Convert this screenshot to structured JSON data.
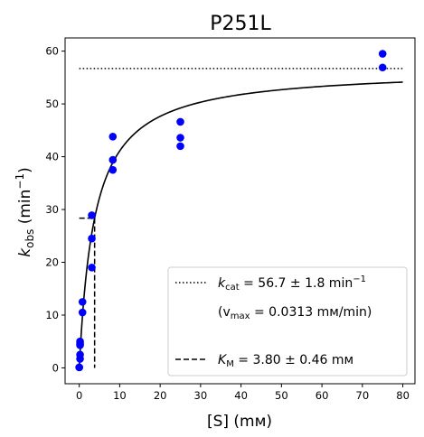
{
  "chart_data": {
    "type": "scatter",
    "title": "P251L",
    "xlabel": "[S] (mм)",
    "ylabel": {
      "main": "k",
      "sub": "obs",
      "unit_open": " (min",
      "sup": "−1",
      "unit_close": ")"
    },
    "xlim": [
      -3.5,
      83
    ],
    "ylim": [
      -3,
      62.5
    ],
    "xticks": [
      0,
      10,
      20,
      30,
      40,
      50,
      60,
      70,
      80
    ],
    "yticks": [
      0,
      10,
      20,
      30,
      40,
      50,
      60
    ],
    "grid": false,
    "legend_position": "bottom-right",
    "colors": {
      "points": "#0000ff",
      "fit": "#000000",
      "axes": "#000000"
    },
    "series": [
      {
        "kind": "scatter",
        "x": [
          0,
          0,
          0.2,
          0.2,
          0.2,
          0.2,
          0.2,
          0.8,
          0.8,
          3.1,
          3.1,
          3.1,
          8.3,
          8.3,
          8.3,
          25,
          25,
          25,
          75,
          75
        ],
        "y": [
          0.1,
          0.1,
          1.7,
          2.5,
          4.3,
          4.6,
          5.0,
          10.5,
          12.5,
          19.0,
          24.5,
          28.9,
          37.5,
          39.4,
          43.8,
          42.0,
          43.6,
          46.6,
          56.9,
          59.5
        ]
      },
      {
        "kind": "fit",
        "model": "michaelis-menten",
        "kcat": 56.7,
        "km": 3.8,
        "x_range": [
          0,
          80
        ]
      },
      {
        "kind": "kcat-line",
        "y": 56.7,
        "x_range": [
          0,
          80
        ]
      },
      {
        "kind": "km-line",
        "x": 3.8,
        "y": 28.35,
        "x_start": 0
      }
    ],
    "legend": [
      {
        "style": "dotted",
        "label": {
          "pre": "k",
          "sub": "cat",
          "post": " = 56.7 ± 1.8 min",
          "sup": "−1"
        }
      },
      {
        "style": "none",
        "label": {
          "pre": "(v",
          "sub": "max",
          "post": " = 0.0313 mм/min)",
          "sup": ""
        }
      },
      {
        "style": "dashed",
        "label": {
          "pre": "K",
          "sub": "M",
          "post": " = 3.80 ± 0.46 mм",
          "sup": ""
        }
      }
    ]
  }
}
